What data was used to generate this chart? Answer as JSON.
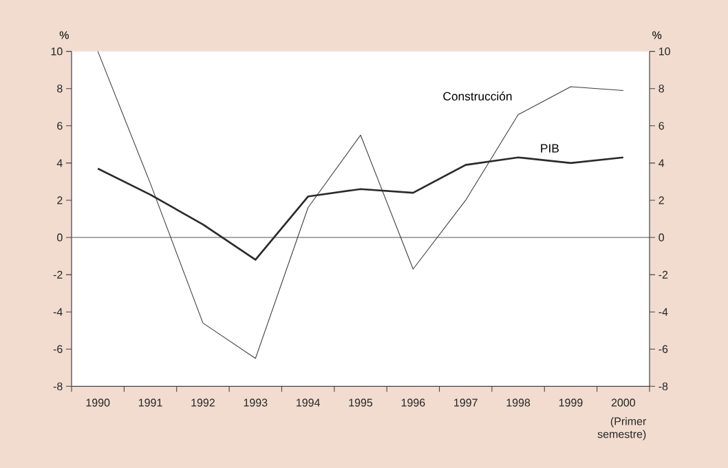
{
  "chart_data": {
    "type": "line",
    "categories": [
      "1990",
      "1991",
      "1992",
      "1993",
      "1994",
      "1995",
      "1996",
      "1997",
      "1998",
      "1999",
      "2000"
    ],
    "series": [
      {
        "name": "Construcción",
        "color": "#3a3a3a",
        "values": [
          10,
          2.9,
          -4.6,
          -6.5,
          1.6,
          5.5,
          -1.7,
          2.0,
          6.6,
          8.1,
          7.9
        ]
      },
      {
        "name": "PIB",
        "color": "#2a2a2a",
        "values": [
          3.7,
          2.3,
          0.7,
          -1.2,
          2.2,
          2.6,
          2.4,
          3.9,
          4.3,
          4.0,
          4.3
        ]
      }
    ],
    "ylabel": "%",
    "y2label": "%",
    "ylim": [
      -8,
      10
    ],
    "yticks": [
      -8,
      -6,
      -4,
      -2,
      0,
      2,
      4,
      6,
      8,
      10
    ],
    "y2lim": [
      -8,
      10
    ],
    "y2ticks": [
      -8,
      -6,
      -4,
      -2,
      0,
      2,
      4,
      6,
      8,
      10
    ],
    "ref_lines": [
      {
        "axis": "y",
        "value": 0,
        "color": "#555555"
      }
    ],
    "annotations": [
      "(Primer semestre)"
    ],
    "grid": false,
    "legend": false,
    "marker": "none",
    "line_style": "solid"
  }
}
